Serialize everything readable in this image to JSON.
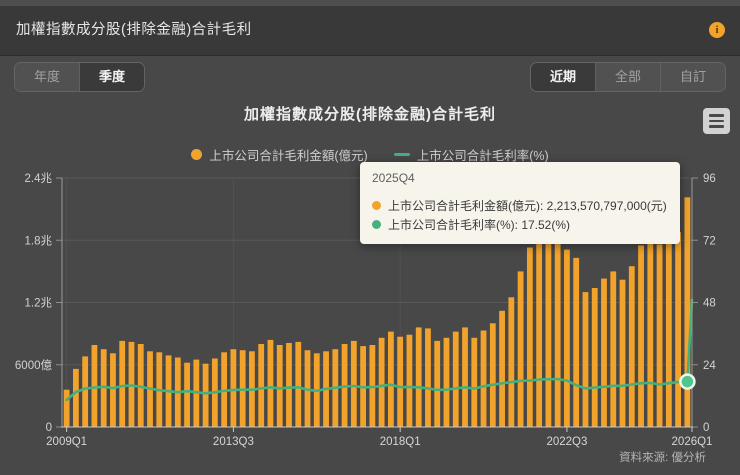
{
  "header": {
    "title": "加權指數成分股(排除金融)合計毛利",
    "info_icon": "i"
  },
  "toolbar": {
    "period": [
      {
        "label": "年度",
        "active": false
      },
      {
        "label": "季度",
        "active": true
      }
    ],
    "range": [
      {
        "label": "近期",
        "active": true
      },
      {
        "label": "全部",
        "active": false
      },
      {
        "label": "自訂",
        "active": false
      }
    ]
  },
  "chart": {
    "title": "加權指數成分股(排除金融)合計毛利"
  },
  "legend": [
    {
      "label": "上市公司合計毛利金額(億元)",
      "color": "#f2a32c",
      "type": "circle"
    },
    {
      "label": "上市公司合計毛利率(%)",
      "color": "#45b07e",
      "type": "line"
    }
  ],
  "tooltip": {
    "header": "2025Q4",
    "rows": [
      {
        "color": "#f2a32c",
        "text": "上市公司合計毛利金額(億元): 2,213,570,797,000(元)"
      },
      {
        "color": "#45b07e",
        "text": "上市公司合計毛利率(%): 17.52(%)"
      }
    ]
  },
  "footer": {
    "source": "資料來源: 優分析"
  },
  "chart_data": {
    "type": "bar",
    "title": "加權指數成分股(排除金融)合計毛利",
    "categories": [
      "2009Q1",
      "2009Q2",
      "2009Q3",
      "2009Q4",
      "2010Q1",
      "2010Q2",
      "2010Q3",
      "2010Q4",
      "2011Q1",
      "2011Q2",
      "2011Q3",
      "2011Q4",
      "2012Q1",
      "2012Q2",
      "2012Q3",
      "2012Q4",
      "2013Q1",
      "2013Q2",
      "2013Q3",
      "2013Q4",
      "2014Q1",
      "2014Q2",
      "2014Q3",
      "2014Q4",
      "2015Q1",
      "2015Q2",
      "2015Q3",
      "2015Q4",
      "2016Q1",
      "2016Q2",
      "2016Q3",
      "2016Q4",
      "2017Q1",
      "2017Q2",
      "2017Q3",
      "2017Q4",
      "2018Q1",
      "2018Q2",
      "2018Q3",
      "2018Q4",
      "2019Q1",
      "2019Q2",
      "2019Q3",
      "2019Q4",
      "2020Q1",
      "2020Q2",
      "2020Q3",
      "2020Q4",
      "2021Q1",
      "2021Q2",
      "2021Q3",
      "2021Q4",
      "2022Q1",
      "2022Q2",
      "2022Q3",
      "2022Q4",
      "2023Q1",
      "2023Q2",
      "2023Q3",
      "2023Q4",
      "2024Q1",
      "2024Q2",
      "2024Q3",
      "2024Q4",
      "2025Q1",
      "2025Q2",
      "2025Q3",
      "2025Q4"
    ],
    "series": [
      {
        "name": "上市公司合計毛利金額(億元)",
        "type": "bar",
        "color": "#f2a32c",
        "unit": "億元",
        "values": [
          3600,
          5600,
          6800,
          7900,
          7500,
          7100,
          8300,
          8200,
          8000,
          7300,
          7200,
          6900,
          6700,
          6200,
          6500,
          6100,
          6600,
          7200,
          7500,
          7400,
          7300,
          8000,
          8400,
          7900,
          8100,
          8200,
          7400,
          7100,
          7300,
          7500,
          8000,
          8300,
          7800,
          7900,
          8600,
          9200,
          8700,
          8900,
          9600,
          9500,
          8300,
          8600,
          9200,
          9600,
          8600,
          9300,
          10000,
          11200,
          12500,
          15000,
          17300,
          18300,
          17900,
          18300,
          17100,
          16300,
          13000,
          13400,
          14300,
          15000,
          14200,
          15500,
          17500,
          18300,
          17600,
          18100,
          18800,
          22135.7
        ]
      },
      {
        "name": "上市公司合計毛利率(%)",
        "type": "line",
        "color": "#45b07e",
        "marker_color": "#4fc78c",
        "unit": "%",
        "values": [
          10.4,
          13.5,
          14.8,
          15.2,
          15.5,
          15.0,
          15.8,
          16.0,
          15.5,
          14.8,
          14.2,
          13.8,
          13.4,
          13.8,
          13.4,
          13.0,
          13.4,
          13.9,
          14.3,
          14.4,
          14.4,
          14.9,
          15.3,
          14.9,
          15.2,
          15.3,
          14.4,
          13.9,
          14.7,
          15.1,
          15.6,
          15.8,
          15.3,
          15.4,
          15.9,
          16.3,
          15.4,
          15.4,
          15.3,
          14.9,
          14.3,
          14.4,
          14.9,
          15.3,
          14.8,
          15.7,
          16.3,
          16.8,
          17.3,
          17.8,
          17.9,
          18.3,
          18.4,
          18.5,
          17.9,
          16.1,
          14.9,
          15.2,
          15.5,
          15.9,
          15.9,
          16.4,
          16.9,
          17.0,
          16.4,
          16.9,
          17.3,
          17.52
        ],
        "extra_point": {
          "category": "2026Q1",
          "value": 49.0
        }
      }
    ],
    "y_left": {
      "labels": [
        "0",
        "6000億",
        "1.2兆",
        "1.8兆",
        "2.4兆"
      ],
      "max_value": 24000
    },
    "y_right": {
      "labels": [
        "0",
        "24",
        "48",
        "72",
        "96"
      ],
      "max_value": 96
    },
    "x_ticks": [
      {
        "label": "2009Q1",
        "index": 0
      },
      {
        "label": "2013Q3",
        "index": 18
      },
      {
        "label": "2018Q1",
        "index": 36
      },
      {
        "label": "2022Q3",
        "index": 54
      },
      {
        "label": "2026Q1",
        "index": 68
      }
    ],
    "hover": {
      "category": "2025Q4",
      "index": 67,
      "amount": "2,213,570,797,000(元)",
      "rate": "17.52(%)"
    },
    "grid": true,
    "legend_position": "top"
  }
}
